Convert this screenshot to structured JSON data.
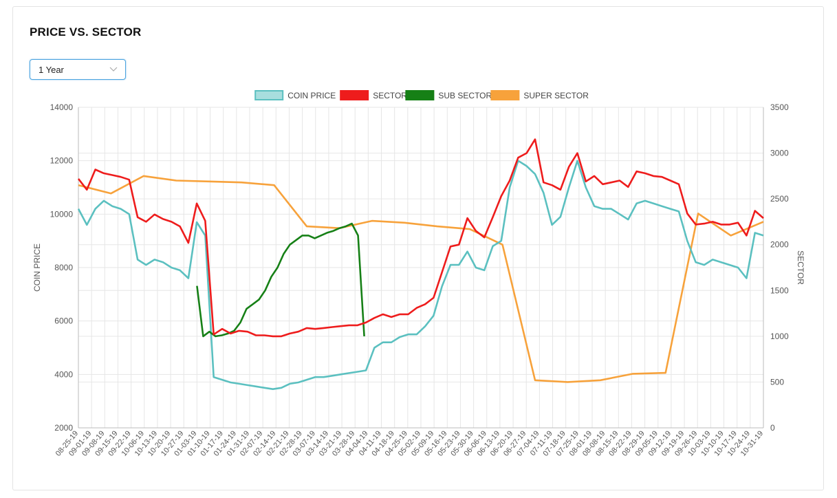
{
  "panel": {
    "title": "PRICE VS. SECTOR"
  },
  "range_select": {
    "value": "1 Year"
  },
  "colors": {
    "coin": "#5bc0c0",
    "coin_fill": "#a8dede",
    "sector": "#ee1c1c",
    "sub": "#168016",
    "super": "#f7a23b",
    "grid": "#e6e6e6"
  },
  "chart_data": {
    "type": "line",
    "grid": true,
    "legend_position": "top",
    "legend": [
      "COIN PRICE",
      "SECTOR",
      "SUB SECTOR",
      "SUPER SECTOR"
    ],
    "y_left": {
      "label": "COIN PRICE",
      "lim": [
        2000,
        14000
      ],
      "ticks": [
        "2000",
        "4000",
        "6000",
        "8000",
        "10000",
        "12000",
        "14000"
      ]
    },
    "y_right": {
      "label": "SECTOR",
      "lim": [
        0,
        3500
      ],
      "ticks": [
        "0",
        "500",
        "1000",
        "1500",
        "2000",
        "2500",
        "3000",
        "3500"
      ]
    },
    "x_tick_labels": [
      "08-25-19",
      "09-01-19",
      "09-08-19",
      "09-15-19",
      "09-22-19",
      "10-06-19",
      "10-13-19",
      "10-20-19",
      "10-27-19",
      "01-03-19",
      "01-10-19",
      "01-17-19",
      "01-24-19",
      "01-31-19",
      "02-07-19",
      "02-14-19",
      "02-21-19",
      "02-28-19",
      "03-07-19",
      "03-14-19",
      "03-21-19",
      "03-28-19",
      "04-04-19",
      "04-11-19",
      "04-18-19",
      "04-25-19",
      "05-02-19",
      "05-09-19",
      "05-16-19",
      "05-23-19",
      "05-30-19",
      "06-06-19",
      "06-13-19",
      "06-20-19",
      "06-27-19",
      "07-04-19",
      "07-11-19",
      "07-18-19",
      "07-25-19",
      "08-01-19",
      "08-08-19",
      "08-15-19",
      "08-22-19",
      "08-29-19",
      "09-05-19",
      "09-12-19",
      "09-19-19",
      "09-26-19",
      "10-03-19",
      "10-10-19",
      "10-17-19",
      "10-24-19",
      "10-31-19"
    ],
    "series": [
      {
        "name": "COIN PRICE",
        "axis": "left",
        "values": [
          10200,
          9600,
          10200,
          10500,
          10300,
          10200,
          10000,
          8300,
          8100,
          8300,
          8200,
          8000,
          7900,
          7600,
          9700,
          9200,
          3900,
          3800,
          3700,
          3650,
          3600,
          3550,
          3500,
          3450,
          3500,
          3650,
          3700,
          3800,
          3900,
          3900,
          3950,
          4000,
          4050,
          4100,
          4150,
          5000,
          5200,
          5200,
          5400,
          5500,
          5500,
          5800,
          6200,
          7300,
          8100,
          8100,
          8600,
          8000,
          7900,
          8800,
          9000,
          11000,
          12000,
          11800,
          11500,
          10800,
          9600,
          9900,
          11000,
          12000,
          11000,
          10300,
          10200,
          10200,
          10000,
          9800,
          10400,
          10500,
          10400,
          10300,
          10200,
          10100,
          9000,
          8200,
          8100,
          8300,
          8200,
          8100,
          8000,
          7600,
          9300,
          9200
        ]
      },
      {
        "name": "SECTOR",
        "axis": "right",
        "values": [
          2720,
          2600,
          2820,
          2780,
          2760,
          2740,
          2710,
          2300,
          2250,
          2330,
          2280,
          2250,
          2200,
          2020,
          2450,
          2260,
          1020,
          1080,
          1030,
          1060,
          1050,
          1010,
          1010,
          1000,
          1000,
          1030,
          1050,
          1090,
          1080,
          1090,
          1100,
          1110,
          1120,
          1120,
          1150,
          1200,
          1240,
          1210,
          1240,
          1240,
          1310,
          1350,
          1420,
          1700,
          1980,
          2000,
          2290,
          2150,
          2080,
          2300,
          2530,
          2700,
          2950,
          3000,
          3150,
          2680,
          2650,
          2600,
          2850,
          3000,
          2690,
          2750,
          2660,
          2680,
          2700,
          2630,
          2800,
          2780,
          2750,
          2740,
          2700,
          2660,
          2340,
          2220,
          2230,
          2250,
          2220,
          2220,
          2240,
          2100,
          2370,
          2290
        ]
      },
      {
        "name": "SUB SECTOR",
        "axis": "right",
        "values": [
          1550,
          1000,
          1050,
          1000,
          1010,
          1030,
          1060,
          1150,
          1300,
          1350,
          1400,
          1500,
          1650,
          1750,
          1900,
          2000,
          2050,
          2100,
          2100,
          2070,
          2100,
          2130,
          2150,
          2180,
          2200,
          2230,
          2100,
          1000
        ]
      },
      {
        "name": "SUPER SECTOR",
        "axis": "right",
        "values": [
          2650,
          2560,
          2750,
          2700,
          2690,
          2680,
          2650,
          2200,
          2180,
          2260,
          2240,
          2200,
          2170,
          2000,
          520,
          500,
          520,
          590,
          600,
          2340,
          2100,
          2250
        ]
      }
    ]
  }
}
